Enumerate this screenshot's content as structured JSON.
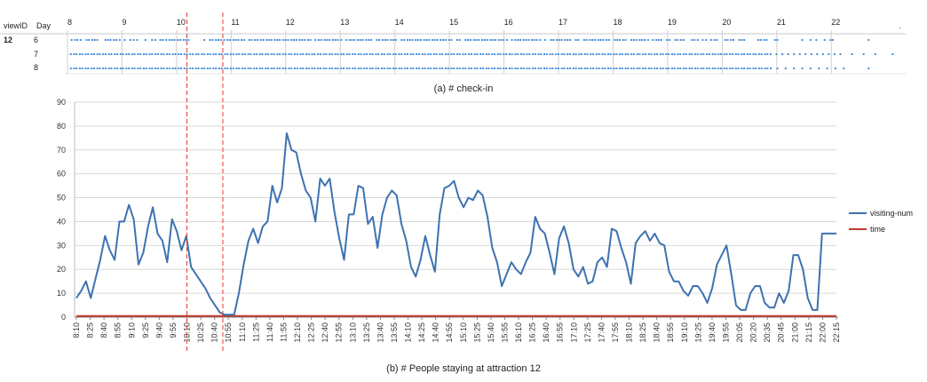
{
  "colors": {
    "visiting": "#3e72b0",
    "time": "#c0392b",
    "dots": "#4a90d9",
    "grid": "#d9d9d9",
    "axis": "#888888",
    "marker": "#e53935"
  },
  "checkin": {
    "header_view": "viewID",
    "header_day": "Day",
    "view_id": "12",
    "days": [
      "6",
      "7",
      "8"
    ],
    "hours": [
      "8",
      "9",
      "10",
      "11",
      "12",
      "13",
      "14",
      "15",
      "16",
      "17",
      "18",
      "19",
      "20",
      "21",
      "22"
    ],
    "end_mark": ".",
    "caption": "(a) # check-in"
  },
  "main": {
    "caption": "(b) # People staying at attraction 12"
  },
  "chart_data": {
    "type": "line",
    "ylim": [
      0,
      90
    ],
    "yticks": [
      0,
      10,
      20,
      30,
      40,
      50,
      60,
      70,
      80,
      90
    ],
    "x_labels": [
      "8:10",
      "8:25",
      "8:40",
      "8:55",
      "9:10",
      "9:25",
      "9:40",
      "9:55",
      "10:10",
      "10:25",
      "10:40",
      "10:55",
      "11:10",
      "11:25",
      "11:40",
      "11:55",
      "12:10",
      "12:25",
      "12:40",
      "12:55",
      "13:10",
      "13:25",
      "13:40",
      "13:55",
      "14:10",
      "14:25",
      "14:40",
      "14:55",
      "15:10",
      "15:25",
      "15:40",
      "15:55",
      "16:10",
      "16:25",
      "16:40",
      "16:55",
      "17:10",
      "17:25",
      "17:40",
      "17:55",
      "18:10",
      "18:25",
      "18:40",
      "18:55",
      "19:10",
      "19:25",
      "19:40",
      "19:55",
      "20:05",
      "20:20",
      "20:35",
      "20:45",
      "21:00",
      "21:15",
      "22:00",
      "22:15"
    ],
    "marker_lines": [
      8.0,
      10.6
    ],
    "x_max": 55,
    "legend": [
      "visiting-num",
      "time"
    ],
    "legend_position": "right",
    "series": [
      {
        "name": "visiting-num",
        "values": [
          8,
          11,
          15,
          8,
          16,
          24,
          34,
          28,
          24,
          40,
          40,
          47,
          41,
          22,
          27,
          38,
          46,
          35,
          32,
          23,
          41,
          36,
          28,
          34,
          21,
          18,
          15,
          12,
          8,
          5,
          2,
          1,
          1,
          1,
          10,
          22,
          32,
          37,
          31,
          38,
          40,
          55,
          48,
          54,
          77,
          70,
          69,
          60,
          53,
          50,
          40,
          58,
          55,
          58,
          44,
          33,
          24,
          43,
          43,
          55,
          54,
          39,
          42,
          29,
          43,
          50,
          53,
          51,
          39,
          32,
          21,
          17,
          24,
          34,
          26,
          19,
          43,
          54,
          55,
          57,
          50,
          46,
          50,
          49,
          53,
          51,
          42,
          29,
          23,
          13,
          18,
          23,
          20,
          18,
          23,
          27,
          42,
          37,
          35,
          27,
          18,
          33,
          38,
          31,
          20,
          17,
          21,
          14,
          15,
          23,
          25,
          21,
          37,
          36,
          29,
          23,
          14,
          31,
          34,
          36,
          32,
          35,
          31,
          30,
          19,
          15,
          15,
          11,
          9,
          13,
          13,
          10,
          6,
          12,
          22,
          26,
          30,
          18,
          5,
          3,
          3,
          10,
          13,
          13,
          6,
          4,
          4,
          10,
          6,
          11,
          26,
          26,
          20,
          8,
          3,
          3,
          35,
          35,
          35,
          35
        ]
      },
      {
        "name": "time",
        "values": [
          0.5,
          0.5
        ]
      }
    ]
  },
  "dot_rows": [
    [
      0.5,
      0.9,
      1.2,
      1.6,
      2.3,
      2.6,
      3.0,
      3.3,
      3.6,
      4.6,
      4.9,
      5.2,
      5.6,
      5.9,
      6.3,
      6.9,
      7.6,
      8.0,
      8.4,
      9.4,
      10.2,
      10.6,
      11.2,
      11.5,
      11.9,
      12.3,
      12.6,
      12.9,
      13.3,
      13.6,
      14.0,
      14.3,
      14.6,
      16.5,
      17.2,
      17.5,
      17.9,
      18.2,
      18.5,
      18.9,
      19.3,
      19.6,
      20.0,
      20.3,
      20.6,
      21.0,
      21.3,
      21.9,
      22.2,
      22.6,
      22.9,
      23.3,
      23.6,
      24.0,
      24.3,
      24.6,
      25.0,
      25.3,
      25.6,
      26.0,
      26.3,
      26.6,
      27.0,
      27.3,
      27.6,
      28.0,
      28.3,
      28.6,
      29.0,
      29.3,
      29.9,
      30.3,
      30.6,
      31.0,
      31.3,
      31.6,
      32.0,
      32.3,
      32.6,
      33.0,
      33.6,
      34.0,
      34.3,
      34.6,
      35.0,
      35.3,
      35.6,
      36.0,
      36.3,
      36.6,
      37.3,
      37.6,
      38.0,
      38.3,
      38.6,
      39.0,
      39.3,
      39.6,
      40.3,
      40.6,
      41.0,
      41.3,
      41.6,
      42.0,
      42.3,
      42.6,
      43.0,
      43.3,
      43.6,
      44.0,
      44.3,
      44.6,
      45.0,
      45.3,
      45.6,
      46.0,
      46.3,
      47.0,
      47.3,
      48.0,
      48.3,
      48.6,
      49.0,
      49.3,
      49.6,
      50.0,
      50.3,
      50.6,
      51.0,
      51.3,
      51.6,
      52.0,
      52.3,
      52.6,
      53.0,
      53.6,
      54.0,
      54.3,
      54.6,
      55.0,
      55.3,
      55.6,
      56.0,
      56.3,
      56.6,
      57.0,
      57.6,
      58.3,
      58.6,
      59.0,
      59.3,
      59.6,
      60.0,
      60.3,
      60.6,
      61.3,
      61.6,
      62.3,
      62.6,
      63.0,
      63.3,
      63.6,
      64.0,
      64.3,
      64.6,
      65.0,
      65.3,
      66.0,
      66.3,
      66.6,
      67.0,
      67.3,
      68.0,
      68.3,
      68.6,
      69.0,
      69.3,
      69.6,
      70.0,
      70.6,
      71.0,
      71.3,
      71.6,
      72.3,
      72.6,
      73.3,
      73.6,
      74.0,
      74.3,
      75.3,
      75.6,
      76.0,
      76.6,
      77.0,
      77.6,
      78.0,
      78.3,
      79.3,
      79.6,
      80.0,
      80.3,
      81.0,
      81.3,
      81.6,
      83.3,
      83.6,
      84.0,
      84.3,
      85.3,
      85.6,
      88.6,
      89.6,
      90.3,
      91.3,
      92.0,
      92.3,
      96.6
    ],
    [
      0.4,
      0.8,
      1.1,
      1.5,
      1.8,
      2.2,
      2.5,
      2.9,
      3.2,
      3.6,
      3.9,
      4.3,
      4.6,
      5.0,
      5.3,
      5.7,
      6.0,
      6.4,
      6.7,
      7.1,
      7.4,
      7.8,
      8.1,
      8.5,
      8.8,
      9.2,
      9.5,
      9.9,
      10.2,
      10.6,
      10.9,
      11.3,
      11.6,
      12.0,
      12.3,
      12.7,
      13.0,
      13.4,
      13.7,
      14.1,
      14.4,
      14.8,
      15.1,
      15.5,
      15.8,
      16.2,
      16.5,
      16.9,
      17.2,
      17.6,
      17.9,
      18.3,
      18.6,
      19.0,
      19.3,
      19.7,
      20.0,
      20.4,
      20.7,
      21.1,
      21.4,
      21.8,
      22.1,
      22.5,
      22.8,
      23.2,
      23.5,
      23.9,
      24.2,
      24.6,
      24.9,
      25.3,
      25.6,
      26.0,
      26.3,
      26.7,
      27.0,
      27.4,
      27.7,
      28.1,
      28.4,
      28.8,
      29.1,
      29.5,
      29.8,
      30.2,
      30.5,
      30.9,
      31.2,
      31.6,
      31.9,
      32.3,
      32.6,
      33.0,
      33.3,
      33.7,
      34.0,
      34.4,
      34.7,
      35.1,
      35.4,
      35.8,
      36.1,
      36.5,
      36.8,
      37.2,
      37.5,
      37.9,
      38.2,
      38.6,
      38.9,
      39.3,
      39.6,
      40.0,
      40.3,
      40.7,
      41.0,
      41.4,
      41.7,
      42.1,
      42.4,
      42.8,
      43.1,
      43.5,
      43.8,
      44.2,
      44.5,
      44.9,
      45.2,
      45.6,
      45.9,
      46.3,
      46.6,
      47.0,
      47.3,
      47.7,
      48.0,
      48.4,
      48.7,
      49.1,
      49.4,
      49.8,
      50.1,
      50.5,
      50.8,
      51.2,
      51.5,
      51.9,
      52.2,
      52.6,
      52.9,
      53.3,
      53.6,
      54.0,
      54.3,
      54.7,
      55.0,
      55.4,
      55.7,
      56.1,
      56.4,
      56.8,
      57.1,
      57.5,
      57.8,
      58.2,
      58.5,
      58.9,
      59.2,
      59.6,
      59.9,
      60.3,
      60.6,
      61.0,
      61.3,
      61.7,
      62.0,
      62.4,
      62.7,
      63.1,
      63.4,
      63.8,
      64.1,
      64.5,
      64.8,
      65.2,
      65.5,
      65.9,
      66.2,
      66.6,
      66.9,
      67.3,
      67.6,
      68.0,
      68.3,
      68.7,
      69.0,
      69.4,
      69.7,
      70.1,
      70.4,
      70.8,
      71.1,
      71.5,
      71.8,
      72.2,
      72.5,
      72.9,
      73.2,
      73.6,
      73.9,
      74.3,
      74.6,
      75.0,
      75.3,
      75.7,
      76.0,
      76.4,
      76.7,
      77.1,
      77.4,
      77.8,
      78.1,
      78.5,
      78.8,
      79.2,
      79.5,
      79.9,
      80.2,
      80.6,
      80.9,
      81.3,
      81.6,
      82.0,
      82.3,
      82.7,
      83.0,
      83.4,
      83.7,
      84.1,
      84.4,
      84.8,
      85.5,
      86.2,
      86.9,
      87.6,
      88.3,
      89.0,
      89.7,
      90.4,
      91.1,
      91.8,
      92.5,
      93.2,
      94.6,
      96.0,
      97.4,
      99.5
    ],
    [
      0.4,
      0.8,
      1.1,
      1.5,
      1.8,
      2.2,
      2.5,
      2.9,
      3.2,
      3.6,
      3.9,
      4.3,
      4.6,
      5.0,
      5.3,
      5.7,
      6.0,
      6.4,
      6.7,
      7.1,
      7.4,
      7.8,
      8.1,
      8.5,
      8.8,
      9.2,
      9.5,
      9.9,
      10.2,
      10.6,
      10.9,
      11.3,
      11.6,
      12.0,
      12.3,
      12.7,
      13.0,
      13.4,
      13.7,
      14.1,
      14.4,
      14.8,
      15.1,
      15.5,
      15.8,
      16.2,
      16.5,
      16.9,
      17.2,
      17.6,
      17.9,
      18.3,
      18.6,
      19.0,
      19.3,
      19.7,
      20.0,
      20.4,
      20.7,
      21.1,
      21.4,
      21.8,
      22.1,
      22.5,
      22.8,
      23.2,
      23.5,
      23.9,
      24.2,
      24.6,
      24.9,
      25.3,
      25.6,
      26.0,
      26.3,
      26.7,
      27.0,
      27.4,
      27.7,
      28.1,
      28.4,
      28.8,
      29.1,
      29.5,
      29.8,
      30.2,
      30.5,
      30.9,
      31.2,
      31.6,
      31.9,
      32.3,
      32.6,
      33.0,
      33.3,
      33.7,
      34.0,
      34.4,
      34.7,
      35.1,
      35.4,
      35.8,
      36.1,
      36.5,
      36.8,
      37.2,
      37.5,
      37.9,
      38.2,
      38.6,
      38.9,
      39.3,
      39.6,
      40.0,
      40.3,
      40.7,
      41.0,
      41.4,
      41.7,
      42.1,
      42.4,
      42.8,
      43.1,
      43.5,
      43.8,
      44.2,
      44.5,
      44.9,
      45.2,
      45.6,
      45.9,
      46.3,
      46.6,
      47.0,
      47.3,
      47.7,
      48.0,
      48.4,
      48.7,
      49.1,
      49.4,
      49.8,
      50.1,
      50.5,
      50.8,
      51.2,
      51.5,
      51.9,
      52.2,
      52.6,
      52.9,
      53.3,
      53.6,
      54.0,
      54.3,
      54.7,
      55.0,
      55.4,
      55.7,
      56.1,
      56.4,
      56.8,
      57.1,
      57.5,
      57.8,
      58.2,
      58.5,
      58.9,
      59.2,
      59.6,
      59.9,
      60.3,
      60.6,
      61.0,
      61.3,
      61.7,
      62.0,
      62.4,
      62.7,
      63.1,
      63.4,
      63.8,
      64.1,
      64.5,
      64.8,
      65.2,
      65.5,
      65.9,
      66.2,
      66.6,
      66.9,
      67.3,
      67.6,
      68.0,
      68.3,
      68.7,
      69.0,
      69.4,
      69.7,
      70.1,
      70.4,
      70.8,
      71.1,
      71.5,
      71.8,
      72.2,
      72.5,
      72.9,
      73.2,
      73.6,
      73.9,
      74.3,
      74.6,
      75.0,
      75.3,
      75.7,
      76.0,
      76.4,
      76.7,
      77.1,
      77.4,
      77.8,
      78.1,
      78.5,
      78.8,
      79.2,
      79.5,
      79.9,
      80.2,
      80.6,
      80.9,
      81.3,
      81.6,
      82.0,
      82.3,
      82.7,
      83.0,
      83.4,
      83.7,
      84.1,
      84.4,
      84.8,
      85.6,
      86.6,
      87.6,
      88.6,
      89.6,
      90.6,
      91.6,
      92.6,
      93.6,
      96.6
    ]
  ]
}
